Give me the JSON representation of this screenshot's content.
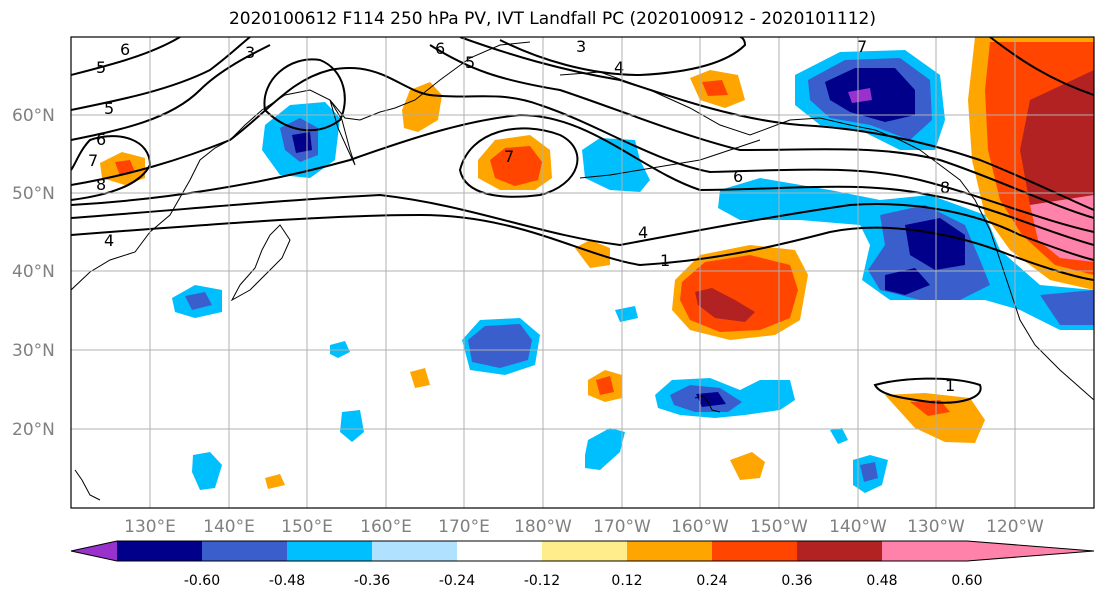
{
  "title": "2020100612 F114 250 hPa PV, IVT Landfall PC (2020100912 - 2020101112)",
  "map": {
    "lat_labels": [
      "60°N",
      "50°N",
      "40°N",
      "30°N",
      "20°N"
    ],
    "lon_labels": [
      "130°E",
      "140°E",
      "150°E",
      "160°E",
      "170°E",
      "180°W",
      "170°W",
      "160°W",
      "150°W",
      "140°W",
      "130°W",
      "120°W"
    ],
    "contour_labels": [
      "1",
      "3",
      "4",
      "5",
      "6",
      "7",
      "8"
    ]
  },
  "colorbar": {
    "colors": [
      "#9932cc",
      "#00008b",
      "#3a5fcd",
      "#00bfff",
      "#b0e2ff",
      "#ffffff",
      "#ffec8b",
      "#ffa500",
      "#ff4500",
      "#b22222",
      "#ff82ab"
    ],
    "tick_labels": [
      "-0.60",
      "-0.48",
      "-0.36",
      "-0.24",
      "-0.12",
      "0.12",
      "0.24",
      "0.36",
      "0.48",
      "0.60"
    ]
  },
  "colors": {
    "gridline": "#b0b0b0",
    "coast": "#000000",
    "contour": "#000000"
  }
}
